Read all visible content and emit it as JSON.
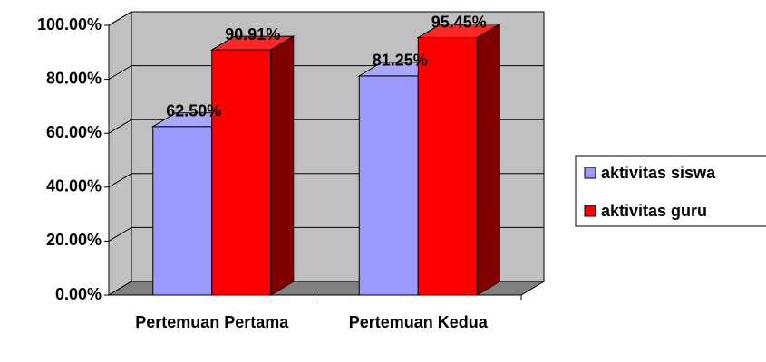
{
  "chart_data": {
    "type": "bar3d",
    "categories": [
      "Pertemuan Pertama",
      "Pertemuan Kedua"
    ],
    "series": [
      {
        "name": "aktivitas siswa",
        "color": "#9999ff",
        "values": [
          62.5,
          81.25
        ],
        "value_labels": [
          "62.50%",
          "81.25%"
        ]
      },
      {
        "name": "aktivitas guru",
        "color": "#ff0000",
        "values": [
          90.91,
          95.45
        ],
        "value_labels": [
          "90.91%",
          "95.45%"
        ]
      }
    ],
    "ylim": [
      0,
      100
    ],
    "yticks": [
      {
        "value": 0,
        "label": "0.00%"
      },
      {
        "value": 20,
        "label": "20.00%"
      },
      {
        "value": 40,
        "label": "40.00%"
      },
      {
        "value": 60,
        "label": "60.00%"
      },
      {
        "value": 80,
        "label": "80.00%"
      },
      {
        "value": 100,
        "label": "100.00%"
      }
    ],
    "grid": true,
    "legend": "right"
  }
}
